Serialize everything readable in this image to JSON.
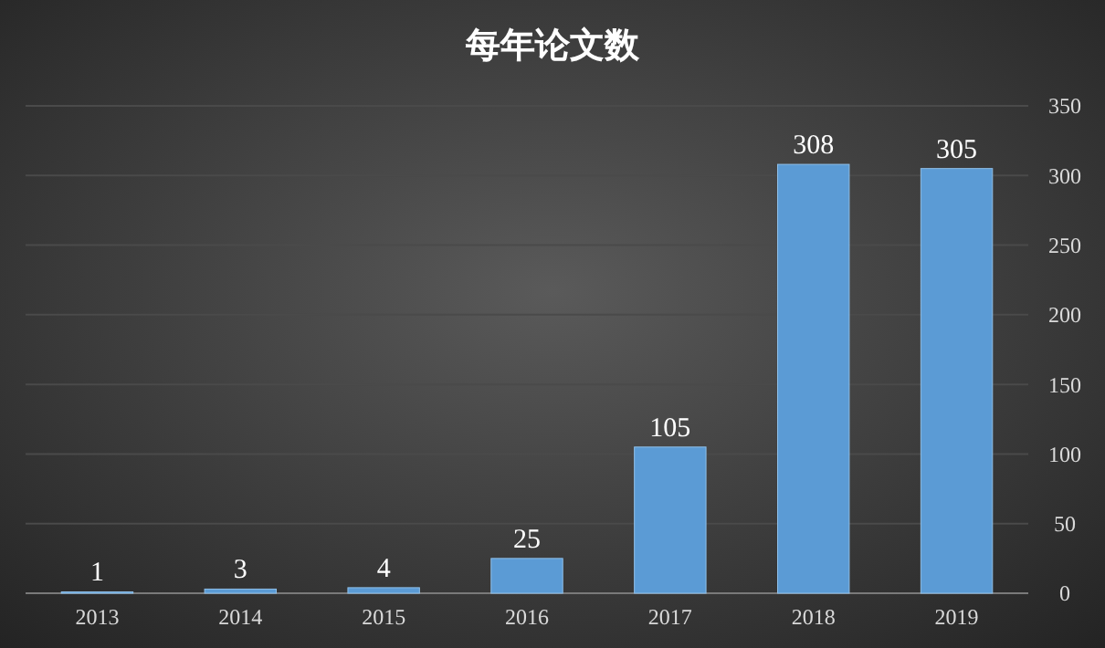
{
  "chart_data": {
    "type": "bar",
    "title": "每年论文数",
    "categories": [
      "2013",
      "2014",
      "2015",
      "2016",
      "2017",
      "2018",
      "2019"
    ],
    "values": [
      1,
      3,
      4,
      25,
      105,
      308,
      305
    ],
    "color": "#5b9bd5",
    "ylim": [
      0,
      350
    ],
    "yticks": [
      0,
      50,
      100,
      150,
      200,
      250,
      300,
      350
    ],
    "grid": "y",
    "data_labels": true
  }
}
